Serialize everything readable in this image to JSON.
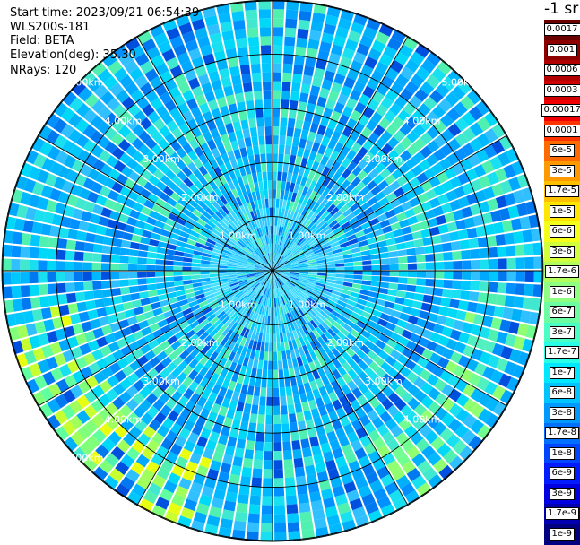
{
  "info": {
    "start_time": "Start time: 2023/09/21 06:54:39",
    "instrument": "WLS200s-181",
    "field": "Field: BETA",
    "elevation": "Elevation(deg): 35.30",
    "nrays": "NRays: 120"
  },
  "colorbar": {
    "title": "-1 sr",
    "labels": [
      "0.0017",
      "0.001",
      "0.0006",
      "0.0003",
      "0.00017",
      "0.0001",
      "6e-5",
      "3e-5",
      "1.7e-5",
      "1e-5",
      "6e-6",
      "3e-6",
      "1.7e-6",
      "1e-6",
      "6e-7",
      "3e-7",
      "1.7e-7",
      "1e-7",
      "6e-8",
      "3e-8",
      "1.7e-8",
      "1e-8",
      "6e-9",
      "3e-9",
      "1.7e-9",
      "1e-9"
    ],
    "colors": [
      "#6a0000",
      "#8c0000",
      "#b00000",
      "#d00000",
      "#f00000",
      "#ff3300",
      "#ff6a00",
      "#ff9900",
      "#ffc000",
      "#ffe600",
      "#f4ff1a",
      "#d2ff3c",
      "#b0ff5e",
      "#8eff80",
      "#6cffa2",
      "#4affc4",
      "#28ffe6",
      "#00e8ff",
      "#00c4ff",
      "#009aff",
      "#0070ff",
      "#0046ff",
      "#001cff",
      "#0000e0",
      "#0000b0",
      "#000080"
    ]
  },
  "chart_data": {
    "type": "heatmap",
    "projection": "polar PPI scan",
    "field": "BETA",
    "units": "-1 sr",
    "n_rays": 120,
    "range_rings_km": [
      1.0,
      2.0,
      3.0,
      4.0,
      5.0
    ],
    "ring_labels": [
      "1.00km",
      "2.00km",
      "3.00km",
      "4.00km",
      "5.00km"
    ],
    "max_range_km": 5.0,
    "azimuth_lines_deg": [
      0,
      30,
      60,
      90,
      120,
      150,
      180,
      210,
      240,
      270,
      300,
      330
    ],
    "value_range": [
      1e-09,
      0.0017
    ],
    "dominant_value_range": [
      3e-08,
      1e-06
    ],
    "feature": "enhanced backscatter (~1e-6 to 3e-6) near far range in the south-west sector"
  }
}
